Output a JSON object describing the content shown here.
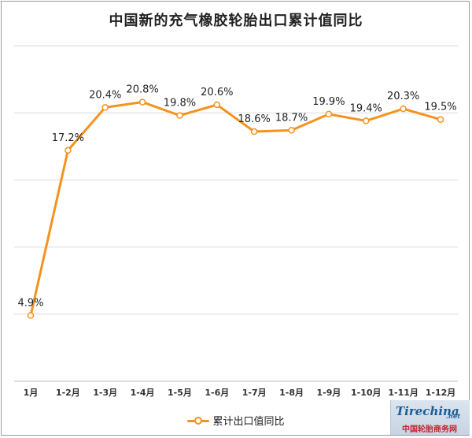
{
  "chart_data": {
    "type": "line",
    "title": "中国新的充气橡胶轮胎出口累计值同比",
    "categories": [
      "1月",
      "1-2月",
      "1-3月",
      "1-4月",
      "1-5月",
      "1-6月",
      "1-7月",
      "1-8月",
      "1-9月",
      "1-10月",
      "1-11月",
      "1-12月"
    ],
    "series": [
      {
        "name": "累计出口值同比",
        "values": [
          4.9,
          17.2,
          20.4,
          20.8,
          19.8,
          20.6,
          18.6,
          18.7,
          19.9,
          19.4,
          20.3,
          19.5
        ],
        "labels": [
          "4.9%",
          "17.2%",
          "20.4%",
          "20.8%",
          "19.8%",
          "20.6%",
          "18.6%",
          "18.7%",
          "19.9%",
          "19.4%",
          "20.3%",
          "19.5%"
        ],
        "color": "#f5921e"
      }
    ],
    "ylim": [
      0,
      25
    ],
    "y_tick_labels_shown": false,
    "grid": "horizontal",
    "legend": "bottom"
  },
  "watermark": {
    "logo": "Tirechina",
    "logo_suffix": ".net",
    "site_name": "中国轮胎商务网"
  }
}
